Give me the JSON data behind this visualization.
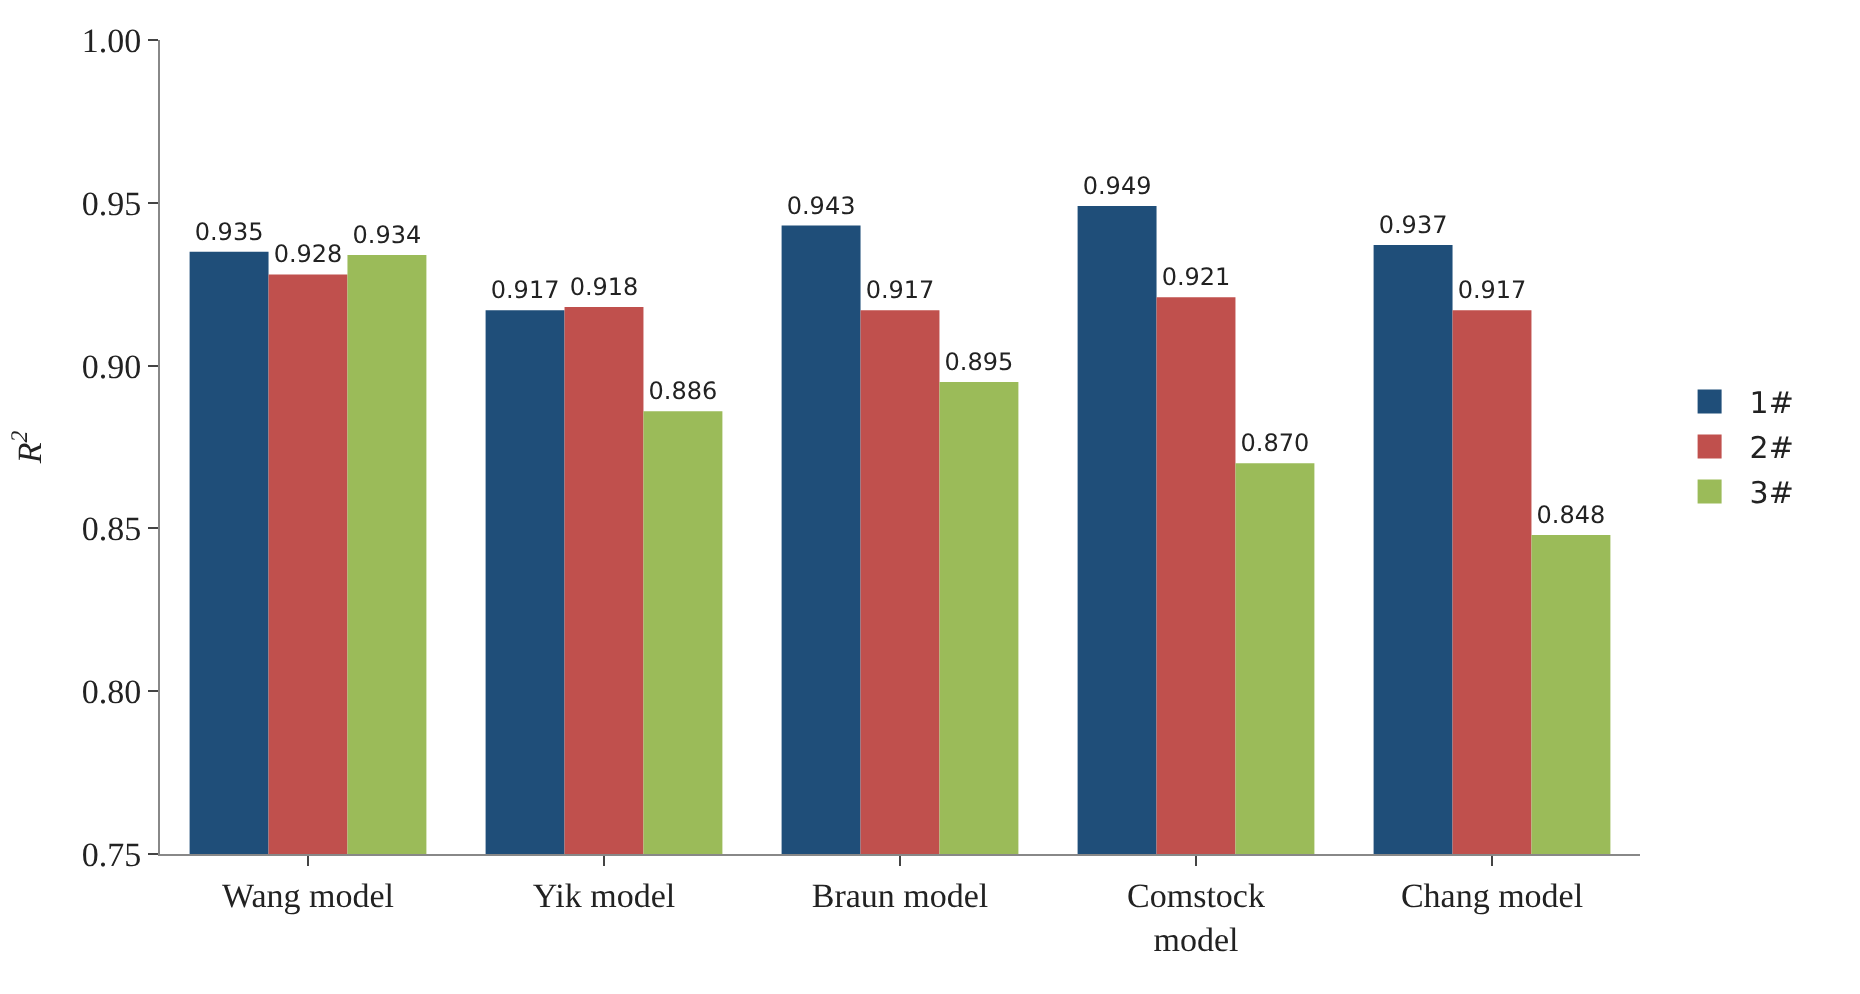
{
  "chart_data": {
    "type": "bar",
    "ylabel": "R$^{2}$",
    "categories": [
      "Wang model",
      "Yik model",
      "Braun model",
      "Comstock model",
      "Chang model"
    ],
    "series": [
      {
        "name": "1#",
        "color": "#1f4e79",
        "values": [
          0.935,
          0.917,
          0.943,
          0.949,
          0.937
        ],
        "value_labels": [
          "0.935",
          "0.917",
          "0.943",
          "0.949",
          "0.937"
        ]
      },
      {
        "name": "2#",
        "color": "#c0504d",
        "values": [
          0.928,
          0.918,
          0.917,
          0.921,
          0.917
        ],
        "value_labels": [
          "0.928",
          "0.918",
          "0.917",
          "0.921",
          "0.917"
        ]
      },
      {
        "name": "3#",
        "color": "#9bbb59",
        "values": [
          0.934,
          0.886,
          0.895,
          0.87,
          0.848
        ],
        "value_labels": [
          "0.934",
          "0.886",
          "0.895",
          "0.870",
          "0.848"
        ]
      }
    ],
    "ylim": [
      0.75,
      1.0
    ],
    "yticks": [
      0.75,
      {
        "value": 0.8,
        "label": "0.80"
      },
      0.85,
      {
        "value": 0.9,
        "label": "0.90"
      },
      0.95,
      {
        "value": 1.0,
        "label": "1.00"
      }
    ],
    "legend": "right"
  }
}
